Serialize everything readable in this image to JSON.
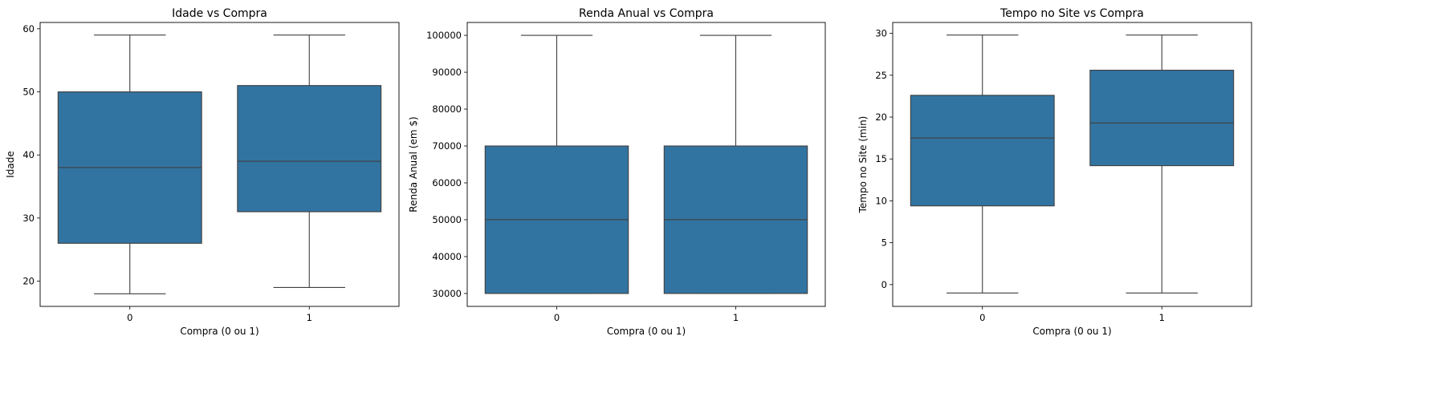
{
  "chart_data": [
    {
      "type": "box",
      "title": "Idade vs Compra",
      "xlabel": "Compra (0 ou 1)",
      "ylabel": "Idade",
      "ylim": [
        16,
        61
      ],
      "yticks": [
        20,
        30,
        40,
        50,
        60
      ],
      "color": "#3274a1",
      "boxes": [
        {
          "category": "0",
          "min": 18,
          "q1": 26,
          "median": 38,
          "q3": 50,
          "max": 59
        },
        {
          "category": "1",
          "min": 19,
          "q1": 31,
          "median": 39,
          "q3": 51,
          "max": 59
        }
      ]
    },
    {
      "type": "box",
      "title": "Renda Anual vs Compra",
      "xlabel": "Compra (0 ou 1)",
      "ylabel": "Renda Anual (em $)",
      "ylim": [
        26500,
        103500
      ],
      "yticks": [
        30000,
        40000,
        50000,
        60000,
        70000,
        80000,
        90000,
        100000
      ],
      "color": "#3274a1",
      "boxes": [
        {
          "category": "0",
          "min": 30000,
          "q1": 30000,
          "median": 50000,
          "q3": 70000,
          "max": 100000
        },
        {
          "category": "1",
          "min": 30000,
          "q1": 30000,
          "median": 50000,
          "q3": 70000,
          "max": 100000
        }
      ]
    },
    {
      "type": "box",
      "title": "Tempo no Site vs Compra",
      "xlabel": "Compra (0 ou 1)",
      "ylabel": "Tempo no Site (min)",
      "ylim": [
        -2.6,
        31.3
      ],
      "yticks": [
        0,
        5,
        10,
        15,
        20,
        25,
        30
      ],
      "color": "#3274a1",
      "boxes": [
        {
          "category": "0",
          "min": -1.0,
          "q1": 9.4,
          "median": 17.5,
          "q3": 22.6,
          "max": 29.8
        },
        {
          "category": "1",
          "min": -1.0,
          "q1": 14.2,
          "median": 19.3,
          "q3": 25.6,
          "max": 29.8
        }
      ]
    }
  ]
}
